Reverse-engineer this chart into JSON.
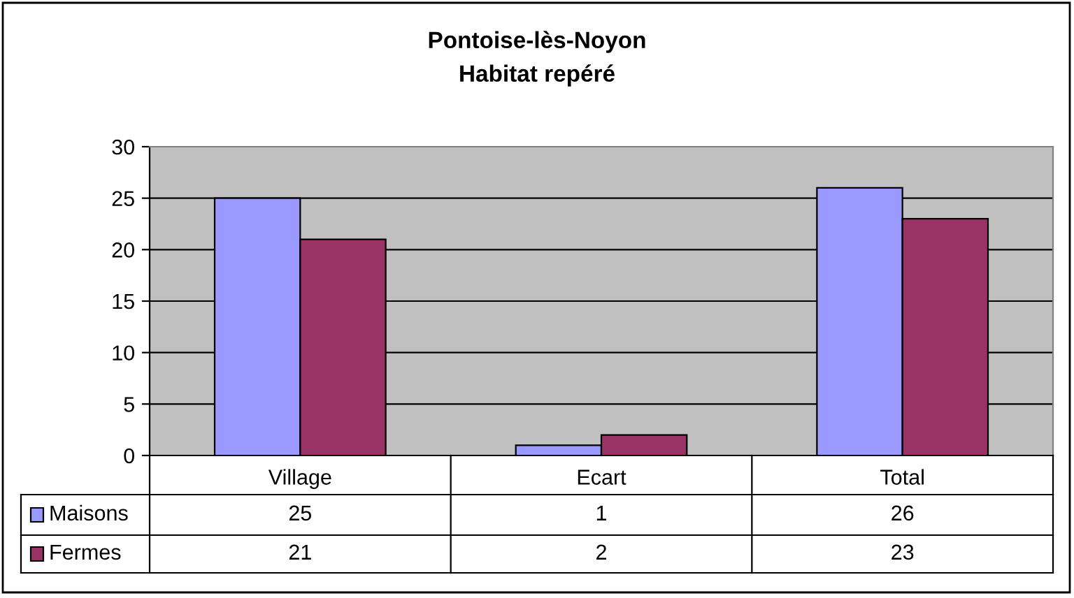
{
  "chart_data": {
    "type": "bar",
    "title": "Pontoise-lès-Noyon",
    "subtitle": "Habitat repéré",
    "categories": [
      "Village",
      "Ecart",
      "Total"
    ],
    "series": [
      {
        "name": "Maisons",
        "color": "#9999ff",
        "values": [
          25,
          1,
          26
        ]
      },
      {
        "name": "Fermes",
        "color": "#993366",
        "values": [
          21,
          2,
          23
        ]
      }
    ],
    "ylim": [
      0,
      30
    ],
    "yticks": [
      0,
      5,
      10,
      15,
      20,
      25,
      30
    ],
    "grid": "y",
    "legend": "bottom",
    "data_labels": true
  }
}
